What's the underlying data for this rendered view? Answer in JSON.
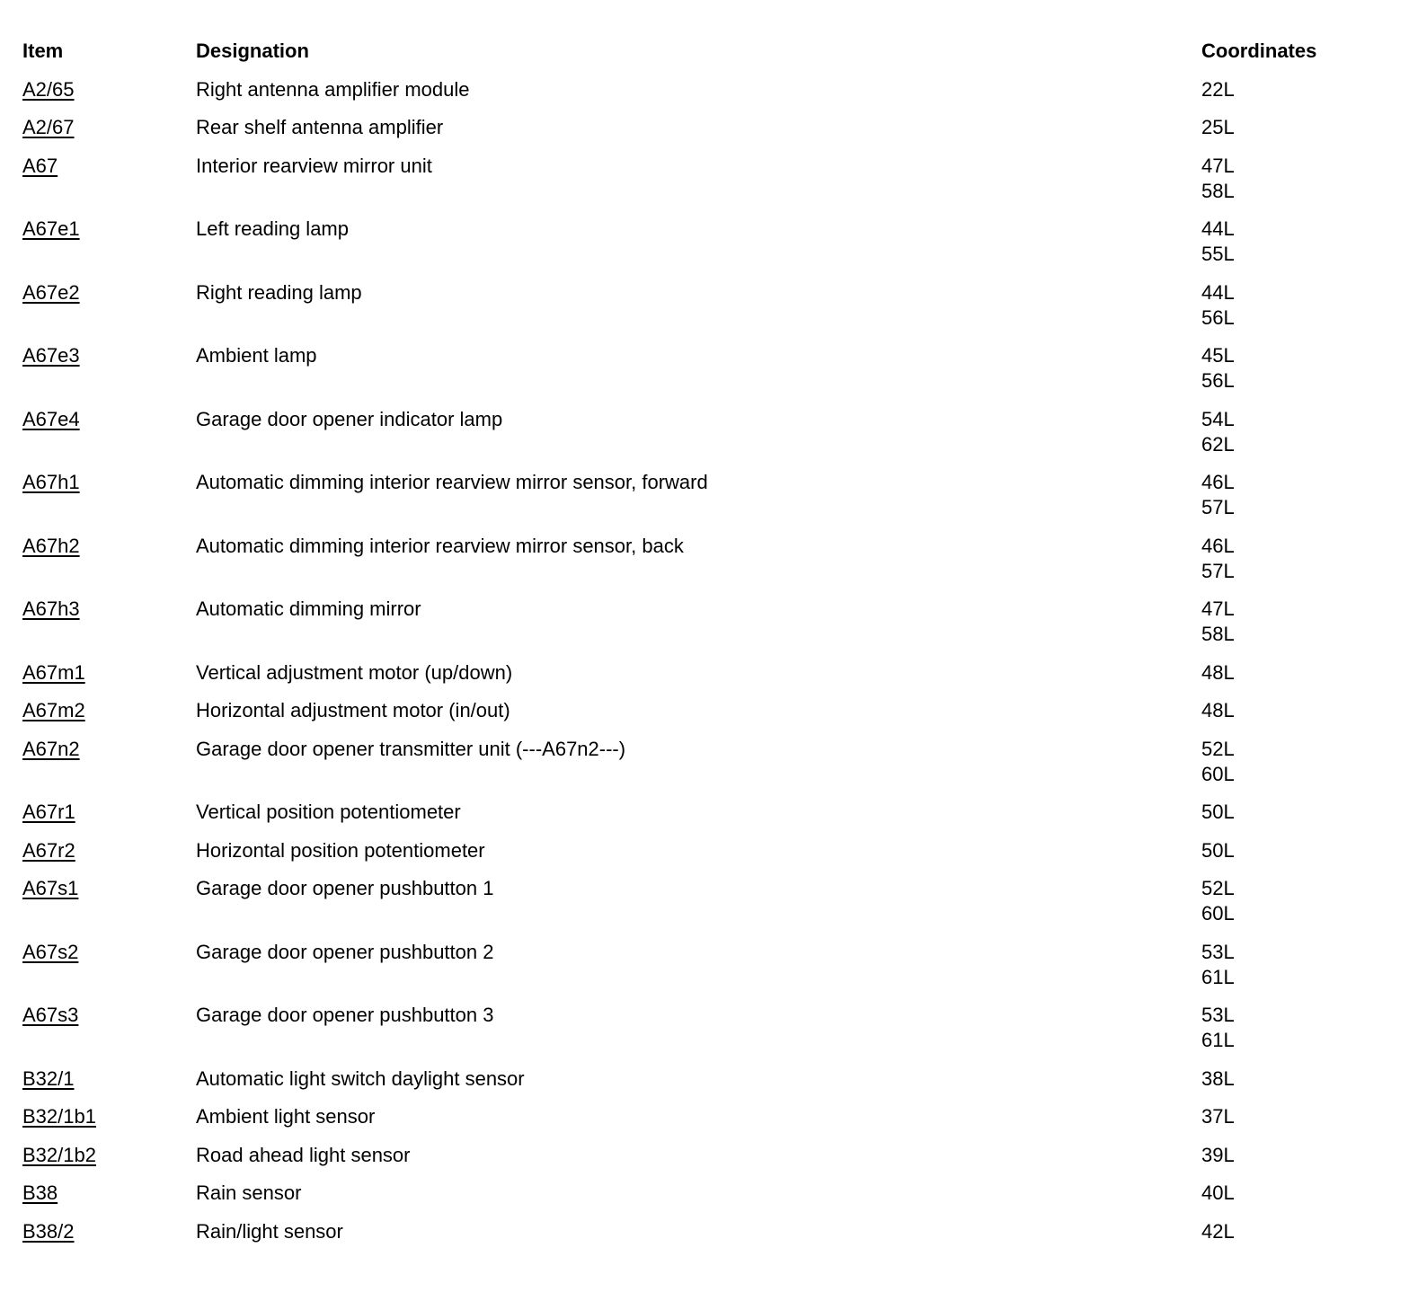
{
  "headers": {
    "item": "Item",
    "designation": "Designation",
    "coordinates": "Coordinates"
  },
  "rows": [
    {
      "item": "A2/65",
      "designation": "Right antenna amplifier module",
      "coordinates": [
        "22L"
      ]
    },
    {
      "item": "A2/67",
      "designation": "Rear shelf antenna amplifier",
      "coordinates": [
        "25L"
      ]
    },
    {
      "item": "A67",
      "designation": "Interior rearview mirror unit",
      "coordinates": [
        "47L",
        "58L"
      ]
    },
    {
      "item": "A67e1",
      "designation": "Left reading lamp",
      "coordinates": [
        "44L",
        "55L"
      ]
    },
    {
      "item": "A67e2",
      "designation": "Right reading lamp",
      "coordinates": [
        "44L",
        "56L"
      ]
    },
    {
      "item": "A67e3",
      "designation": "Ambient lamp",
      "coordinates": [
        "45L",
        "56L"
      ]
    },
    {
      "item": "A67e4",
      "designation": "Garage door opener indicator lamp",
      "coordinates": [
        "54L",
        "62L"
      ]
    },
    {
      "item": "A67h1",
      "designation": "Automatic dimming interior rearview mirror sensor, forward",
      "coordinates": [
        "46L",
        "57L"
      ]
    },
    {
      "item": "A67h2",
      "designation": "Automatic dimming interior rearview mirror sensor, back",
      "coordinates": [
        "46L",
        "57L"
      ]
    },
    {
      "item": "A67h3",
      "designation": "Automatic dimming mirror",
      "coordinates": [
        "47L",
        "58L"
      ]
    },
    {
      "item": "A67m1",
      "designation": "Vertical adjustment motor (up/down)",
      "coordinates": [
        "48L"
      ]
    },
    {
      "item": "A67m2",
      "designation": "Horizontal adjustment motor (in/out)",
      "coordinates": [
        "48L"
      ]
    },
    {
      "item": "A67n2",
      "designation": "Garage door opener transmitter unit (---A67n2---)",
      "coordinates": [
        "52L",
        "60L"
      ]
    },
    {
      "item": "A67r1",
      "designation": "Vertical position potentiometer",
      "coordinates": [
        "50L"
      ]
    },
    {
      "item": "A67r2",
      "designation": "Horizontal position potentiometer",
      "coordinates": [
        "50L"
      ]
    },
    {
      "item": "A67s1",
      "designation": "Garage door opener pushbutton 1",
      "coordinates": [
        "52L",
        "60L"
      ]
    },
    {
      "item": "A67s2",
      "designation": "Garage door opener pushbutton 2",
      "coordinates": [
        "53L",
        "61L"
      ]
    },
    {
      "item": "A67s3",
      "designation": "Garage door opener pushbutton 3",
      "coordinates": [
        "53L",
        "61L"
      ]
    },
    {
      "item": "B32/1",
      "designation": "Automatic light switch daylight sensor",
      "coordinates": [
        "38L"
      ]
    },
    {
      "item": "B32/1b1",
      "designation": "Ambient light sensor",
      "coordinates": [
        "37L"
      ]
    },
    {
      "item": "B32/1b2",
      "designation": "Road ahead light sensor",
      "coordinates": [
        "39L"
      ]
    },
    {
      "item": "B38",
      "designation": "Rain sensor",
      "coordinates": [
        "40L"
      ]
    },
    {
      "item": "B38/2",
      "designation": "Rain/light sensor",
      "coordinates": [
        "42L"
      ]
    }
  ]
}
